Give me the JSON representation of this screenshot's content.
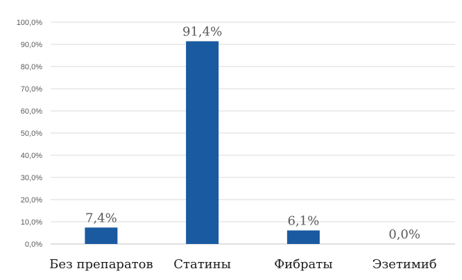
{
  "chart_data": {
    "type": "bar",
    "categories": [
      "Без препаратов",
      "Статины",
      "Фибраты",
      "Эзетимиб"
    ],
    "values": [
      7.4,
      91.4,
      6.1,
      0.0
    ],
    "data_labels": [
      "7,4%",
      "91,4%",
      "6,1%",
      "0,0%"
    ],
    "ylim": [
      0,
      100
    ],
    "y_ticks": [
      0,
      10,
      20,
      30,
      40,
      50,
      60,
      70,
      80,
      90,
      100
    ],
    "y_tick_labels": [
      "0,0%",
      "10,0%",
      "20,0%",
      "30,0%",
      "40,0%",
      "50,0%",
      "60,0%",
      "70,0%",
      "80,0%",
      "90,0%",
      "100,0%"
    ],
    "grid": true,
    "legend": "none",
    "colors": {
      "bar": "#1a5aa0"
    }
  }
}
